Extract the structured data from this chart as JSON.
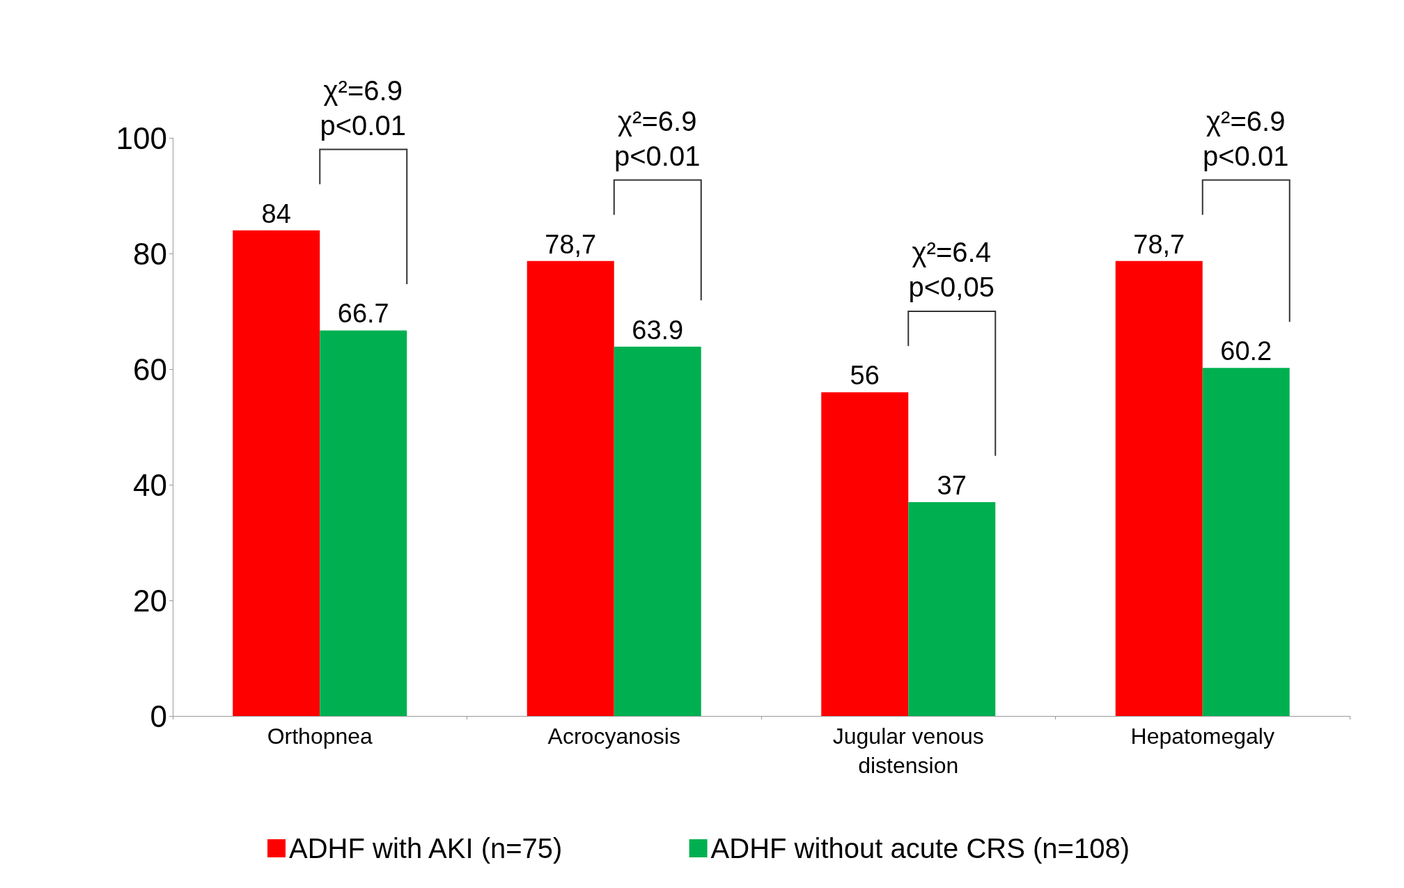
{
  "chart_data": {
    "type": "bar",
    "categories": [
      "Orthopnea",
      "Acrocyanosis",
      "Jugular venous\ndistension",
      "Hepatomegaly"
    ],
    "series": [
      {
        "name": "ADHF with AKI (n=75)",
        "color": "#ff0000",
        "values": [
          84,
          78.7,
          56,
          78.7
        ],
        "value_labels": [
          "84",
          "78,7",
          "56",
          "78,7"
        ]
      },
      {
        "name": "ADHF without acute CRS (n=108)",
        "color": "#00b050",
        "values": [
          66.7,
          63.9,
          37,
          60.2
        ],
        "value_labels": [
          "66.7",
          "63.9",
          "37",
          "60.2"
        ]
      }
    ],
    "ylim": [
      0,
      100
    ],
    "yticks": [
      0,
      20,
      40,
      60,
      80,
      100
    ],
    "grid": false,
    "legend": "bottom",
    "annotations": [
      "χ²=6.9\np<0.01",
      "χ²=6.9\np<0.01",
      "χ²=6.4\np<0,05",
      "χ²=6.9\np<0.01"
    ]
  }
}
